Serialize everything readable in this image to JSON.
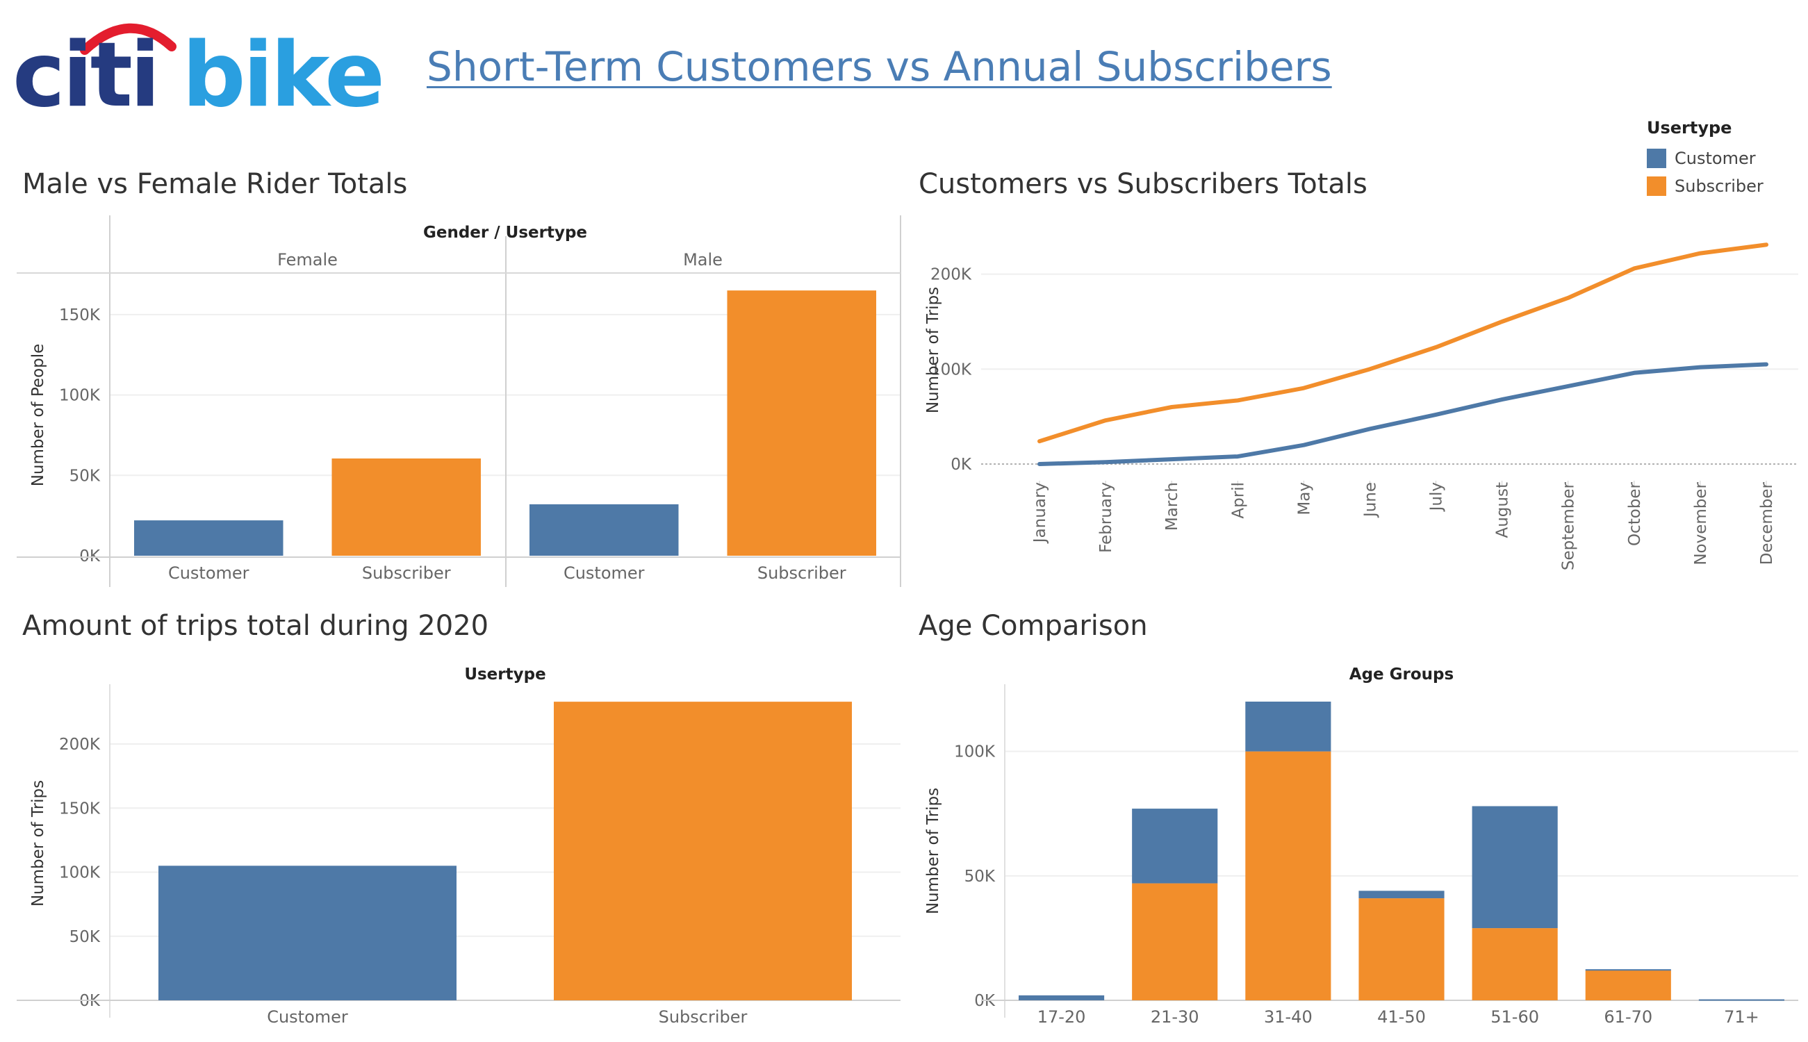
{
  "header": {
    "logo_text_left": "citi",
    "logo_text_right": "bike",
    "title": "Short-Term Customers vs Annual Subscribers"
  },
  "colors": {
    "customer": "#4e79a7",
    "subscriber": "#f28e2b",
    "logo_blue": "#253b80",
    "logo_light": "#2a9fe0",
    "logo_red": "#e31d2e"
  },
  "legend": {
    "title": "Usertype",
    "items": [
      {
        "label": "Customer",
        "color": "#4e79a7"
      },
      {
        "label": "Subscriber",
        "color": "#f28e2b"
      }
    ]
  },
  "chart_data": [
    {
      "id": "gender",
      "panel_title": "Male vs Female Rider Totals",
      "type": "bar",
      "header": "Gender / Usertype",
      "groups": [
        "Female",
        "Male"
      ],
      "categories": [
        "Customer",
        "Subscriber"
      ],
      "values": [
        [
          22000,
          60500
        ],
        [
          32000,
          165000
        ]
      ],
      "ylabel": "Number of People",
      "yticks": [
        0,
        50000,
        100000,
        150000
      ],
      "ytick_labels": [
        "0K",
        "50K",
        "100K",
        "150K"
      ],
      "ylim": [
        0,
        175000
      ]
    },
    {
      "id": "monthly",
      "panel_title": "Customers vs Subscribers Totals",
      "type": "line",
      "x": [
        "January",
        "February",
        "March",
        "April",
        "May",
        "June",
        "July",
        "August",
        "September",
        "October",
        "November",
        "December"
      ],
      "series": [
        {
          "name": "Customer",
          "values": [
            0,
            2000,
            5000,
            8000,
            20000,
            37000,
            52000,
            68000,
            82000,
            96000,
            102000,
            105000
          ]
        },
        {
          "name": "Subscriber",
          "values": [
            24000,
            46000,
            60000,
            67000,
            80000,
            100000,
            123000,
            150000,
            175000,
            206000,
            222000,
            231000
          ]
        }
      ],
      "ylabel": "Number of Trips",
      "yticks": [
        0,
        100000,
        200000
      ],
      "ytick_labels": [
        "0K",
        "100K",
        "200K"
      ],
      "ylim": [
        0,
        240000
      ]
    },
    {
      "id": "totals",
      "panel_title": "Amount of trips total during 2020",
      "type": "bar",
      "header": "Usertype",
      "categories": [
        "Customer",
        "Subscriber"
      ],
      "values": [
        105000,
        233000
      ],
      "ylabel": "Number of Trips",
      "yticks": [
        0,
        50000,
        100000,
        150000,
        200000
      ],
      "ytick_labels": [
        "0K",
        "50K",
        "100K",
        "150K",
        "200K"
      ],
      "ylim": [
        0,
        245000
      ]
    },
    {
      "id": "age",
      "panel_title": "Age Comparison",
      "type": "bar",
      "stacked": true,
      "header": "Age Groups",
      "categories": [
        "17-20",
        "21-30",
        "31-40",
        "41-50",
        "51-60",
        "61-70",
        "71+"
      ],
      "series": [
        {
          "name": "Subscriber",
          "values": [
            0,
            47000,
            100000,
            41000,
            29000,
            12000,
            0
          ]
        },
        {
          "name": "Customer",
          "values": [
            2000,
            30000,
            20000,
            3000,
            49000,
            500,
            400
          ]
        }
      ],
      "ylabel": "Number of Trips",
      "yticks": [
        0,
        50000,
        100000
      ],
      "ytick_labels": [
        "0K",
        "50K",
        "100K"
      ],
      "ylim": [
        0,
        120000
      ]
    }
  ]
}
